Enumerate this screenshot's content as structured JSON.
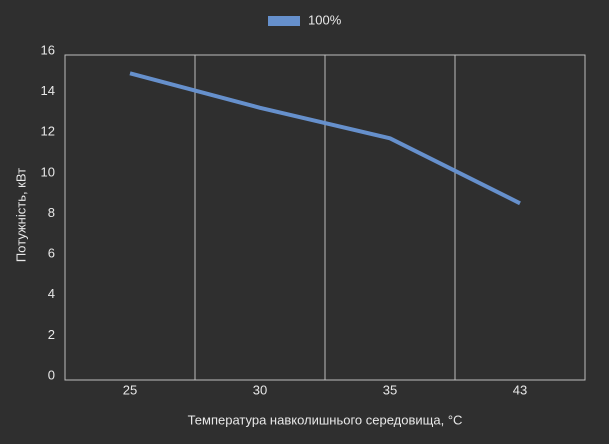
{
  "chart_data": {
    "type": "line",
    "x_label": "Температура навколишнього середовища, °C",
    "y_label": "Потужність, кВт",
    "categories": [
      "25",
      "30",
      "35",
      "43"
    ],
    "series": [
      {
        "name": "100%",
        "color": "#6690cc",
        "values": [
          15.1,
          13.4,
          11.9,
          8.7
        ]
      }
    ],
    "ylim": [
      0,
      16
    ],
    "yticks": [
      0,
      2,
      4,
      6,
      8,
      10,
      12,
      14,
      16
    ],
    "grid": "vertical",
    "legend": "top"
  }
}
